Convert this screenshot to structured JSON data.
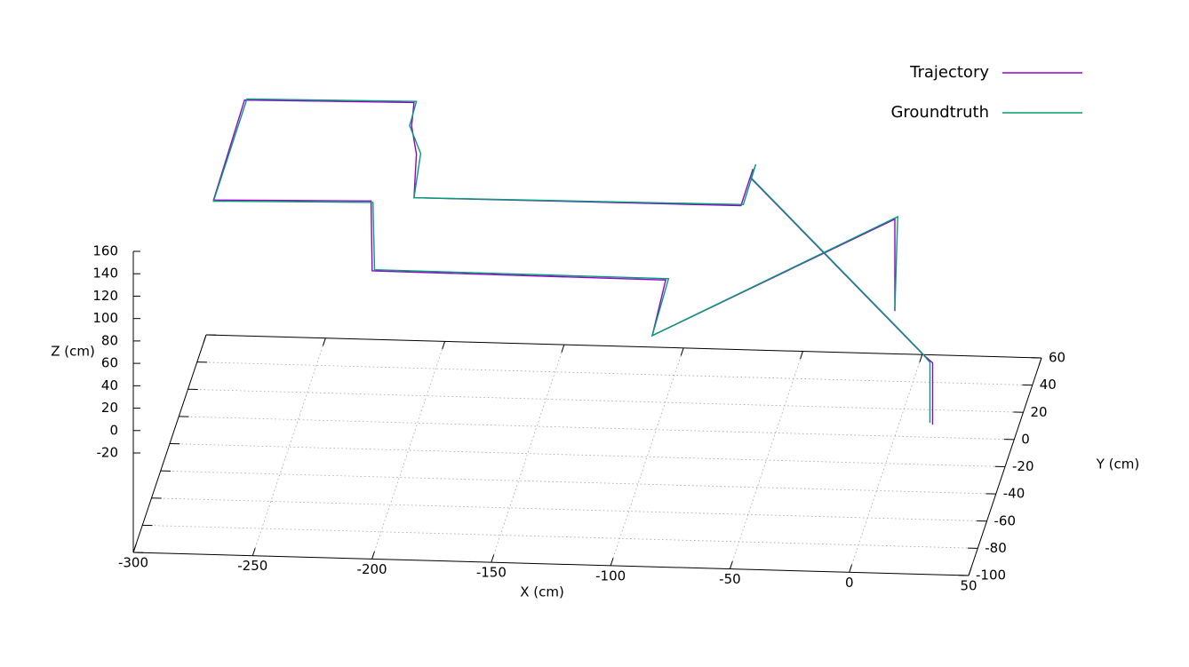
{
  "chart_data": {
    "type": "line3d",
    "xlabel": "X (cm)",
    "ylabel": "Y (cm)",
    "zlabel": "Z (cm)",
    "xlim": [
      -300,
      50
    ],
    "xticks": [
      -300,
      -250,
      -200,
      -150,
      -100,
      -50,
      0,
      50
    ],
    "ylim": [
      -100,
      60
    ],
    "yticks": [
      -100,
      -80,
      -60,
      -40,
      -20,
      0,
      20,
      40,
      60
    ],
    "zlim": [
      -20,
      160
    ],
    "zticks": [
      -20,
      0,
      20,
      40,
      60,
      80,
      100,
      120,
      140,
      160
    ],
    "grid": true,
    "legend": "top right",
    "series": [
      {
        "name": "Trajectory",
        "color": "#9400d3",
        "x": [
          31,
          31,
          26,
          -70,
          -69,
          -74,
          -211,
          -210,
          -212,
          -211,
          -282,
          -295,
          -229,
          -219,
          -96,
          -94,
          0,
          0
        ],
        "y": [
          -79.5,
          -79.5,
          -75,
          50,
          50,
          50,
          50,
          50,
          50,
          50,
          50,
          50,
          50,
          0,
          0,
          -40,
          0,
          0
        ],
        "z": [
          0,
          55,
          57,
          57,
          65,
          32,
          31,
          70,
          95,
          116,
          114,
          24,
          27,
          26,
          25,
          24,
          85,
          3
        ]
      },
      {
        "name": "Groundtruth",
        "color": "#009e73",
        "x": [
          30,
          30,
          25,
          -70,
          -68,
          -73,
          -211,
          -208,
          -213,
          -210,
          -281,
          -295,
          -228,
          -218,
          -95,
          -94,
          1,
          0
        ],
        "y": [
          -80,
          -80,
          -74,
          51,
          51,
          50,
          50,
          49,
          51,
          50,
          50,
          50,
          49,
          0,
          1,
          -40,
          1,
          0
        ],
        "z": [
          2,
          56,
          58,
          56,
          68,
          33,
          31,
          72,
          94,
          117,
          115,
          23,
          27,
          27,
          25,
          24,
          86,
          4
        ]
      }
    ]
  }
}
